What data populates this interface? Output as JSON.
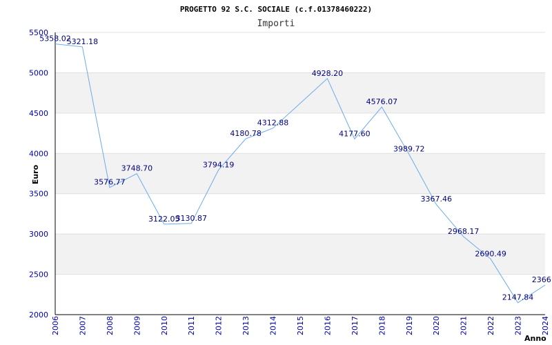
{
  "chart_data": {
    "type": "line",
    "title": "PROGETTO 92 S.C. SOCIALE (c.f.01378460222)",
    "subtitle": "Importi",
    "xlabel": "Anno",
    "ylabel": "Euro",
    "ylim": [
      2000,
      5500
    ],
    "yticks": [
      2000,
      2500,
      3000,
      3500,
      4000,
      4500,
      5000,
      5500
    ],
    "grid": true,
    "x": [
      2006,
      2007,
      2008,
      2009,
      2010,
      2011,
      2012,
      2013,
      2014,
      2015,
      2016,
      2017,
      2018,
      2019,
      2020,
      2021,
      2022,
      2023,
      2024
    ],
    "series": [
      {
        "color": "#6aaaf0",
        "values": [
          5358.02,
          5321.18,
          3576.77,
          3748.7,
          3122.05,
          3130.87,
          3794.19,
          4180.78,
          4312.88,
          null,
          4928.2,
          4177.6,
          4576.07,
          3989.72,
          3367.46,
          2968.17,
          2690.49,
          2147.84,
          2366.0
        ],
        "labels": [
          "5358.02",
          "5321.18",
          "3576.77",
          "3748.70",
          "3122.05",
          "3130.87",
          "3794.19",
          "4180.78",
          "4312.88",
          "",
          "4928.20",
          "4177.60",
          "4576.07",
          "3989.72",
          "3367.46",
          "2968.17",
          "2690.49",
          "2147.84",
          "2366.0"
        ]
      }
    ],
    "colors": {
      "line": "#6aaaf0",
      "band": "#f2f2f2",
      "grid": "#e0e0e0",
      "tick_text": "#0000aa",
      "label_text": "#000080"
    }
  }
}
